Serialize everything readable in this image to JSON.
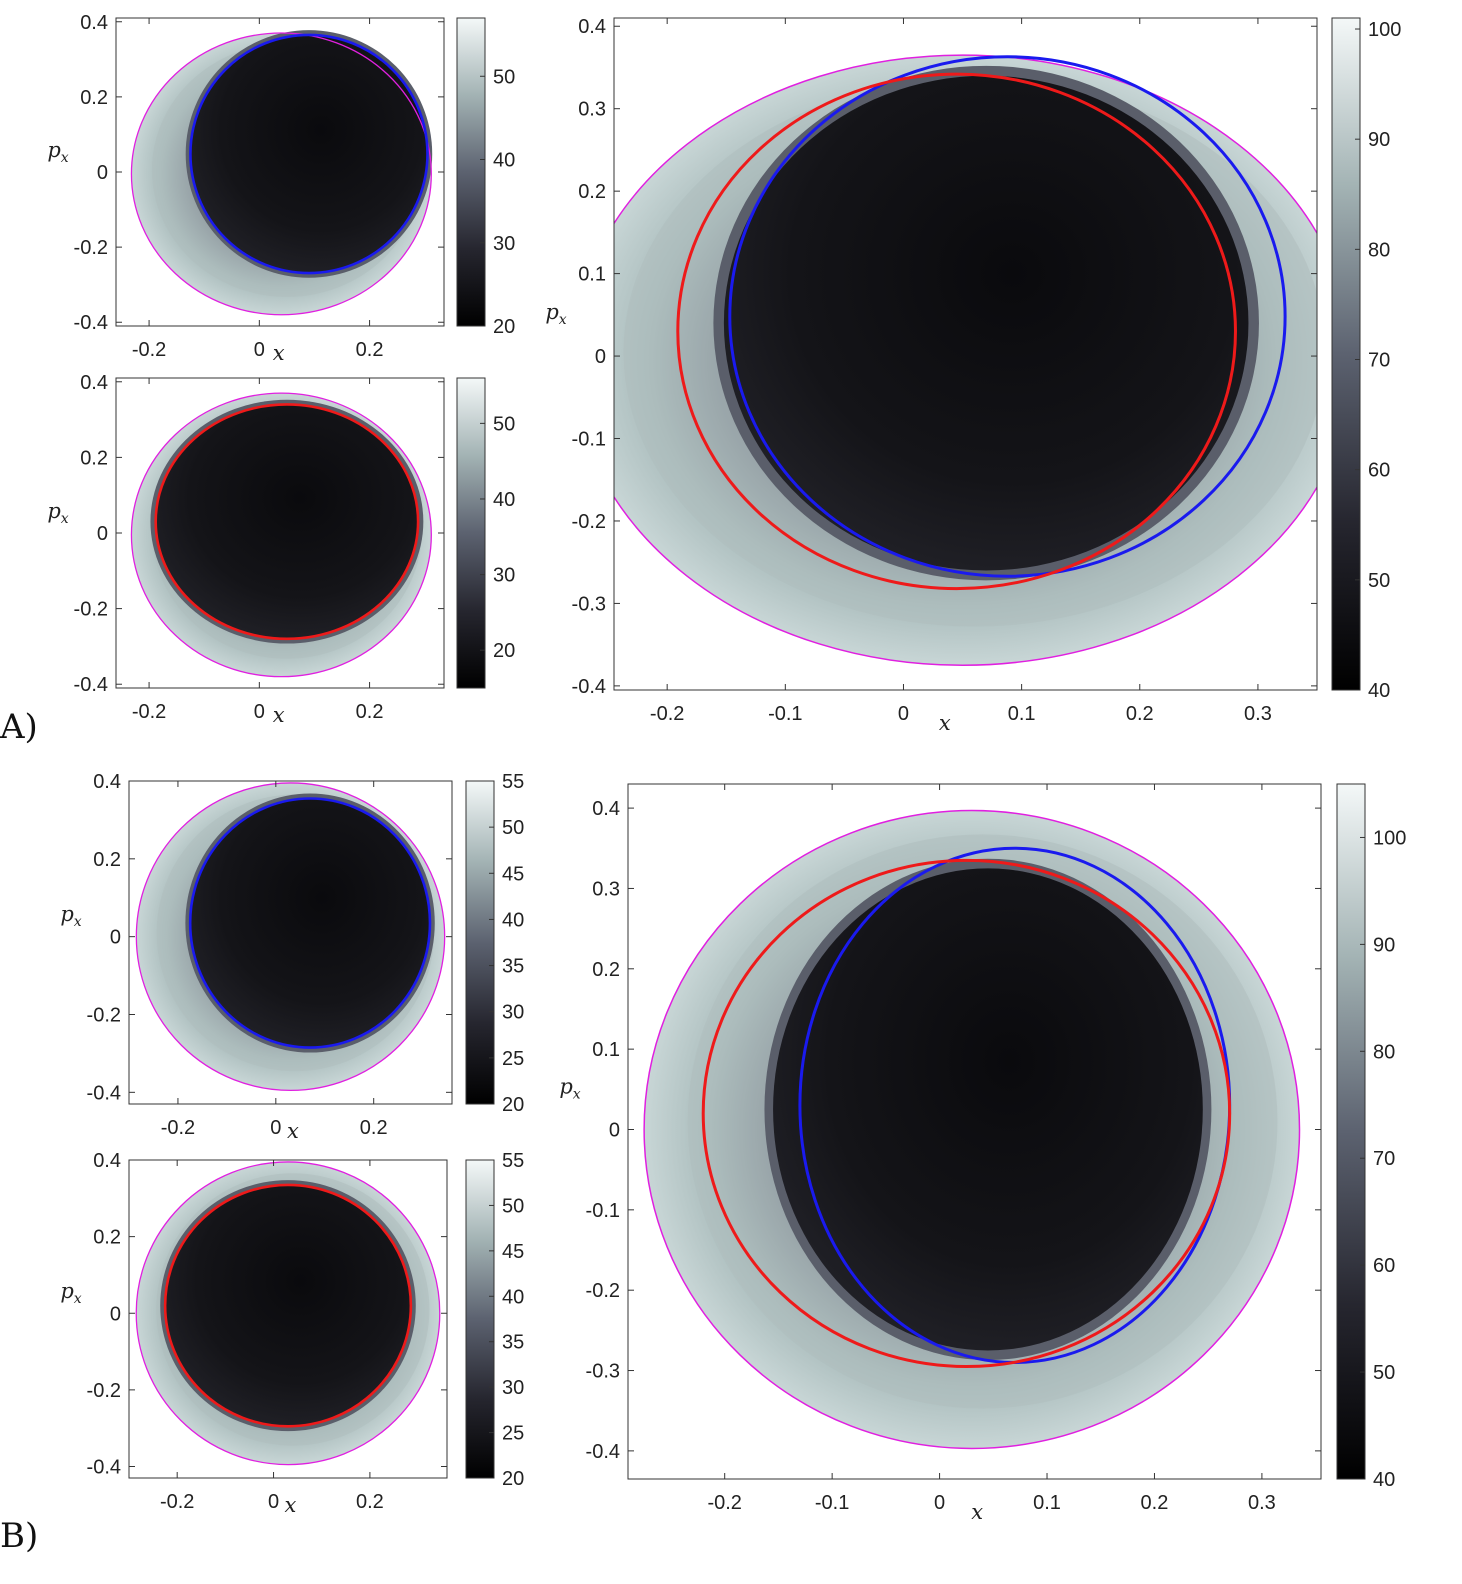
{
  "figure": {
    "panel_labels": [
      "A)",
      "B)"
    ]
  },
  "chart_data": [
    {
      "id": "A-top-small",
      "type": "heatmap",
      "xlabel": "x",
      "ylabel": "p_x",
      "xticks": [
        "-0.2",
        "0",
        "0.2"
      ],
      "xtick_values": [
        -0.2,
        0,
        0.2
      ],
      "yticks": [
        "-0.4",
        "-0.2",
        "0",
        "0.2",
        "0.4"
      ],
      "ytick_values": [
        -0.4,
        -0.2,
        0,
        0.2,
        0.4
      ],
      "xlim": [
        -0.26,
        0.335
      ],
      "ylim": [
        -0.41,
        0.41
      ],
      "colorbar": {
        "ticks": [
          "20",
          "30",
          "40",
          "50"
        ],
        "tick_values": [
          20,
          30,
          40,
          50
        ],
        "range": [
          20,
          57
        ]
      },
      "boundary": {
        "color": "#e020e0",
        "cx": 0.04,
        "cy": -0.005,
        "rx": 0.272,
        "ry": 0.375
      },
      "curves": [
        {
          "color": "#1a1aee",
          "cx": 0.09,
          "cy": 0.048,
          "rx": 0.215,
          "ry": 0.317
        }
      ],
      "fill": {
        "dark_cx": 0.09,
        "dark_cy": 0.048,
        "dark_rx": 0.215,
        "dark_ry": 0.317
      }
    },
    {
      "id": "A-bottom-small",
      "type": "heatmap",
      "xlabel": "x",
      "ylabel": "p_x",
      "xticks": [
        "-0.2",
        "0",
        "0.2"
      ],
      "xtick_values": [
        -0.2,
        0,
        0.2
      ],
      "yticks": [
        "-0.4",
        "-0.2",
        "0",
        "0.2",
        "0.4"
      ],
      "ytick_values": [
        -0.4,
        -0.2,
        0,
        0.2,
        0.4
      ],
      "xlim": [
        -0.26,
        0.335
      ],
      "ylim": [
        -0.41,
        0.41
      ],
      "colorbar": {
        "ticks": [
          "20",
          "30",
          "40",
          "50"
        ],
        "tick_values": [
          20,
          30,
          40,
          50
        ],
        "range": [
          15,
          56
        ]
      },
      "boundary": {
        "color": "#e020e0",
        "cx": 0.04,
        "cy": -0.005,
        "rx": 0.272,
        "ry": 0.375
      },
      "curves": [
        {
          "color": "#ee1a1a",
          "cx": 0.05,
          "cy": 0.03,
          "rx": 0.238,
          "ry": 0.31
        }
      ],
      "fill": {
        "dark_cx": 0.05,
        "dark_cy": 0.03,
        "dark_rx": 0.238,
        "dark_ry": 0.31
      }
    },
    {
      "id": "A-large",
      "type": "heatmap",
      "xlabel": "x",
      "ylabel": "p_x",
      "xticks": [
        "-0.2",
        "-0.1",
        "0",
        "0.1",
        "0.2",
        "0.3"
      ],
      "xtick_values": [
        -0.2,
        -0.1,
        0,
        0.1,
        0.2,
        0.3
      ],
      "yticks": [
        "-0.4",
        "-0.3",
        "-0.2",
        "-0.1",
        "0",
        "0.1",
        "0.2",
        "0.3",
        "0.4"
      ],
      "ytick_values": [
        -0.4,
        -0.3,
        -0.2,
        -0.1,
        0,
        0.1,
        0.2,
        0.3,
        0.4
      ],
      "xlim": [
        -0.245,
        0.35
      ],
      "ylim": [
        -0.405,
        0.41
      ],
      "colorbar": {
        "ticks": [
          "40",
          "50",
          "60",
          "70",
          "80",
          "90",
          "100"
        ],
        "tick_values": [
          40,
          50,
          60,
          70,
          80,
          90,
          100
        ],
        "range": [
          40,
          101
        ]
      },
      "boundary": {
        "color": "#e020e0",
        "cx": 0.05,
        "cy": -0.005,
        "rx": 0.33,
        "ry": 0.37
      },
      "curves": [
        {
          "color": "#1a1aee",
          "cx": 0.088,
          "cy": 0.048,
          "rx": 0.235,
          "ry": 0.315
        },
        {
          "color": "#ee1a1a",
          "cx": 0.045,
          "cy": 0.03,
          "rx": 0.236,
          "ry": 0.312
        }
      ],
      "fill": {
        "dark_cx": 0.07,
        "dark_cy": 0.04,
        "dark_rx": 0.222,
        "dark_ry": 0.3
      }
    },
    {
      "id": "B-top-small",
      "type": "heatmap",
      "xlabel": "x",
      "ylabel": "p_x",
      "xticks": [
        "-0.2",
        "0",
        "0.2"
      ],
      "xtick_values": [
        -0.2,
        0,
        0.2
      ],
      "yticks": [
        "-0.4",
        "-0.2",
        "0",
        "0.2",
        "0.4"
      ],
      "ytick_values": [
        -0.4,
        -0.2,
        0,
        0.2,
        0.4
      ],
      "xlim": [
        -0.3,
        0.36
      ],
      "ylim": [
        -0.43,
        0.4
      ],
      "colorbar": {
        "ticks": [
          "20",
          "25",
          "30",
          "35",
          "40",
          "45",
          "50",
          "55"
        ],
        "tick_values": [
          20,
          25,
          30,
          35,
          40,
          45,
          50,
          55
        ],
        "range": [
          20,
          55
        ]
      },
      "boundary": {
        "color": "#e020e0",
        "cx": 0.03,
        "cy": 0.0,
        "rx": 0.315,
        "ry": 0.395
      },
      "curves": [
        {
          "color": "#1a1aee",
          "cx": 0.07,
          "cy": 0.035,
          "rx": 0.245,
          "ry": 0.32
        }
      ],
      "fill": {
        "dark_cx": 0.07,
        "dark_cy": 0.035,
        "dark_rx": 0.245,
        "dark_ry": 0.32
      }
    },
    {
      "id": "B-bottom-small",
      "type": "heatmap",
      "xlabel": "x",
      "ylabel": "p_x",
      "xticks": [
        "-0.2",
        "0",
        "0.2"
      ],
      "xtick_values": [
        -0.2,
        0,
        0.2
      ],
      "yticks": [
        "-0.4",
        "-0.2",
        "0",
        "0.2",
        "0.4"
      ],
      "ytick_values": [
        -0.4,
        -0.2,
        0,
        0.2,
        0.4
      ],
      "xlim": [
        -0.3,
        0.36
      ],
      "ylim": [
        -0.43,
        0.4
      ],
      "colorbar": {
        "ticks": [
          "20",
          "25",
          "30",
          "35",
          "40",
          "45",
          "50",
          "55"
        ],
        "tick_values": [
          20,
          25,
          30,
          35,
          40,
          45,
          50,
          55
        ],
        "range": [
          20,
          55
        ]
      },
      "boundary": {
        "color": "#e020e0",
        "cx": 0.03,
        "cy": 0.0,
        "rx": 0.315,
        "ry": 0.395
      },
      "curves": [
        {
          "color": "#ee1a1a",
          "cx": 0.03,
          "cy": 0.02,
          "rx": 0.255,
          "ry": 0.315
        }
      ],
      "fill": {
        "dark_cx": 0.03,
        "dark_cy": 0.02,
        "dark_rx": 0.255,
        "dark_ry": 0.315
      }
    },
    {
      "id": "B-large",
      "type": "heatmap",
      "xlabel": "x",
      "ylabel": "p_x",
      "xticks": [
        "-0.2",
        "-0.1",
        "0",
        "0.1",
        "0.2",
        "0.3"
      ],
      "xtick_values": [
        -0.2,
        -0.1,
        0,
        0.1,
        0.2,
        0.3
      ],
      "yticks": [
        "-0.4",
        "-0.3",
        "-0.2",
        "-0.1",
        "0",
        "0.1",
        "0.2",
        "0.3",
        "0.4"
      ],
      "ytick_values": [
        -0.4,
        -0.3,
        -0.2,
        -0.1,
        0,
        0.1,
        0.2,
        0.3,
        0.4
      ],
      "xlim": [
        -0.29,
        0.355
      ],
      "ylim": [
        -0.435,
        0.43
      ],
      "colorbar": {
        "ticks": [
          "40",
          "50",
          "60",
          "70",
          "80",
          "90",
          "100"
        ],
        "tick_values": [
          40,
          50,
          60,
          70,
          80,
          90,
          100
        ],
        "range": [
          40,
          105
        ]
      },
      "boundary": {
        "color": "#e020e0",
        "cx": 0.03,
        "cy": 0.0,
        "rx": 0.305,
        "ry": 0.397
      },
      "curves": [
        {
          "color": "#1a1aee",
          "cx": 0.07,
          "cy": 0.03,
          "rx": 0.2,
          "ry": 0.32
        },
        {
          "color": "#ee1a1a",
          "cx": 0.025,
          "cy": 0.02,
          "rx": 0.245,
          "ry": 0.315
        }
      ],
      "fill": {
        "dark_cx": 0.045,
        "dark_cy": 0.025,
        "dark_rx": 0.2,
        "dark_ry": 0.3
      }
    }
  ]
}
